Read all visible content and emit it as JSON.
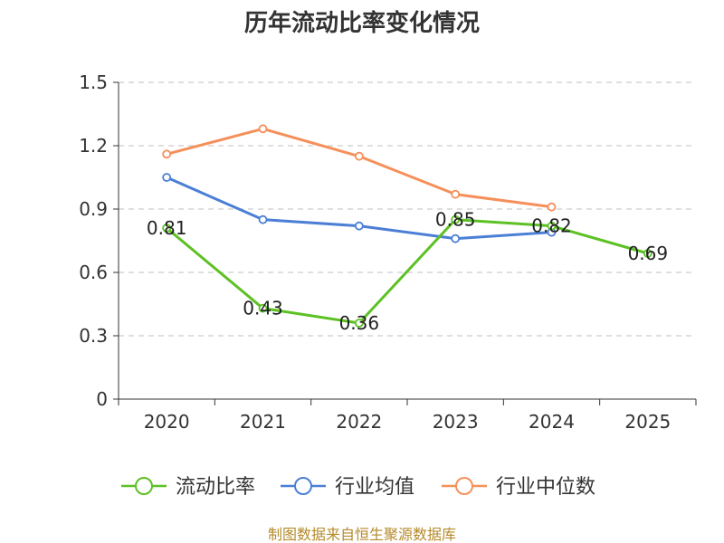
{
  "chart_data": {
    "type": "line",
    "title": "历年流动比率变化情况",
    "categories": [
      "2020",
      "2021",
      "2022",
      "2023",
      "2024",
      "2025"
    ],
    "ylim": [
      0,
      1.5
    ],
    "yticks": [
      "0",
      "0.3",
      "0.6",
      "0.9",
      "1.2",
      "1.5"
    ],
    "grid": true,
    "legend_position": "bottom",
    "series": [
      {
        "name": "流动比率",
        "color": "#5cc123",
        "values": [
          0.81,
          0.43,
          0.36,
          0.85,
          0.82,
          0.69
        ],
        "labels": [
          "0.81",
          "0.43",
          "0.36",
          "0.85",
          "0.82",
          "0.69"
        ]
      },
      {
        "name": "行业均值",
        "color": "#4b7fd6",
        "values": [
          1.05,
          0.85,
          0.82,
          0.76,
          0.79,
          null
        ]
      },
      {
        "name": "行业中位数",
        "color": "#f5905a",
        "values": [
          1.16,
          1.28,
          1.15,
          0.97,
          0.91,
          null
        ]
      }
    ],
    "source": "制图数据来自恒生聚源数据库"
  }
}
